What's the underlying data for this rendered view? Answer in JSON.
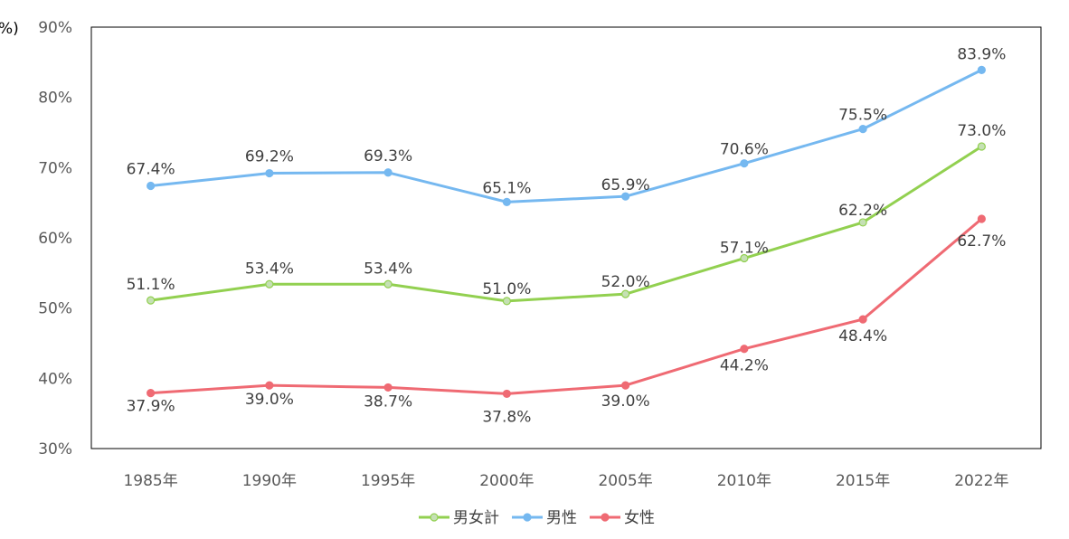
{
  "chart_data": {
    "type": "line",
    "title": "",
    "xlabel": "",
    "ylabel": "",
    "unit_label": "%)",
    "categories": [
      "1985年",
      "1990年",
      "1995年",
      "2000年",
      "2005年",
      "2010年",
      "2015年",
      "2022年"
    ],
    "ylim": [
      30,
      90
    ],
    "yticks": [
      30,
      40,
      50,
      60,
      70,
      80,
      90
    ],
    "ytick_labels": [
      "30%",
      "40%",
      "50%",
      "60%",
      "70%",
      "80%",
      "90%"
    ],
    "grid": false,
    "legend_position": "bottom",
    "series": [
      {
        "name": "男女計",
        "color": "#92D050",
        "marker_fill": "#C5E0B4",
        "values": [
          51.1,
          53.4,
          53.4,
          51.0,
          52.0,
          57.1,
          62.2,
          73.0
        ],
        "labels": [
          "51.1%",
          "53.4%",
          "53.4%",
          "51.0%",
          "52.0%",
          "57.1%",
          "62.2%",
          "73.0%"
        ]
      },
      {
        "name": "男性",
        "color": "#75B8F0",
        "marker_fill": "#75B8F0",
        "values": [
          67.4,
          69.2,
          69.3,
          65.1,
          65.9,
          70.6,
          75.5,
          83.9
        ],
        "labels": [
          "67.4%",
          "69.2%",
          "69.3%",
          "65.1%",
          "65.9%",
          "70.6%",
          "75.5%",
          "83.9%"
        ]
      },
      {
        "name": "女性",
        "color": "#EF6A73",
        "marker_fill": "#EF6A73",
        "values": [
          37.9,
          39.0,
          38.7,
          37.8,
          39.0,
          44.2,
          48.4,
          62.7
        ],
        "labels": [
          "37.9%",
          "39.0%",
          "38.7%",
          "37.8%",
          "39.0%",
          "44.2%",
          "48.4%",
          "62.7%"
        ]
      }
    ]
  }
}
